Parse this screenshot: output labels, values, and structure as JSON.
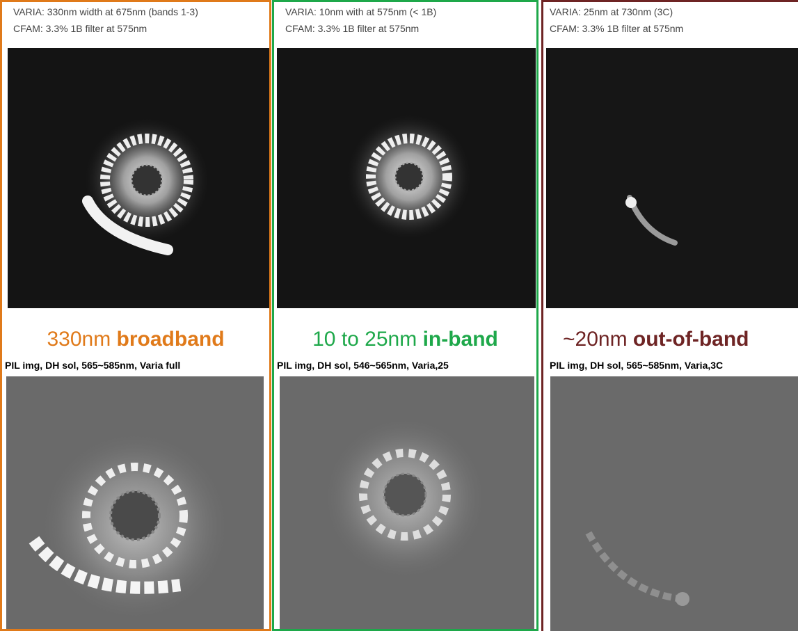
{
  "panels": [
    {
      "lines": [
        "VARIA: 330nm width at 675nm (bands 1-3)",
        "CFAM: 3.3% 1B filter at 575nm"
      ],
      "label": {
        "plain": "330nm ",
        "bold": "broadband"
      },
      "plot_title": "PIL img, DH sol, 565~585nm, Varia full",
      "color": "#e07a1a"
    },
    {
      "lines": [
        "VARIA: 10nm with at 575nm (< 1B)",
        "CFAM: 3.3% 1B filter at 575nm"
      ],
      "label": {
        "plain": "10 to 25nm ",
        "bold": "in-band"
      },
      "plot_title": "PIL img, DH sol, 546~565nm, Varia,25",
      "color": "#1ea84a"
    },
    {
      "lines": [
        "VARIA: 25nm at 730nm (3C)",
        "CFAM: 3.3% 1B filter at 575nm"
      ],
      "label": {
        "plain": "~20nm ",
        "bold": "out-of-band"
      },
      "plot_title": "PIL img, DH sol, 565~585nm, Varia,3C",
      "color": "#6e2424"
    }
  ]
}
